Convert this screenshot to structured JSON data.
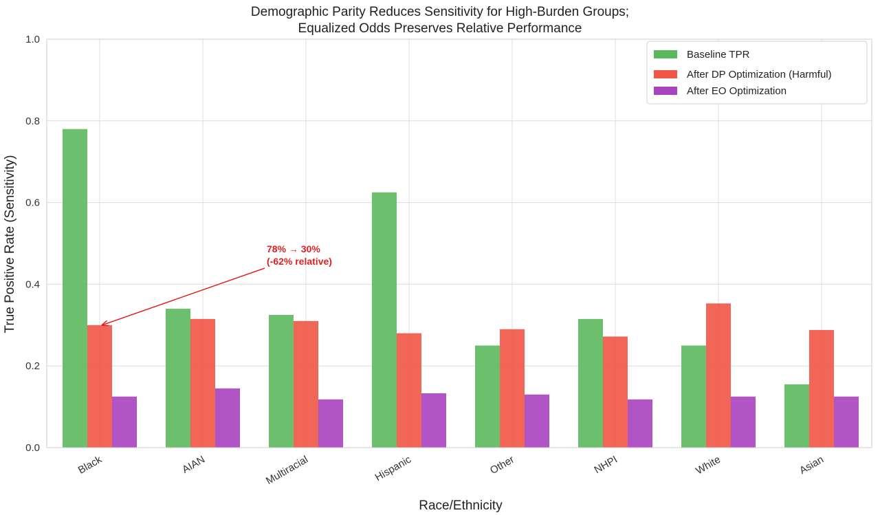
{
  "chart_data": {
    "type": "bar",
    "title": [
      "Demographic Parity Reduces Sensitivity for High-Burden Groups;",
      "Equalized Odds Preserves Relative Performance"
    ],
    "xlabel": "Race/Ethnicity",
    "ylabel": "True Positive Rate (Sensitivity)",
    "ylim": [
      0,
      1.0
    ],
    "yticks": [
      "0.0",
      "0.2",
      "0.4",
      "0.6",
      "0.8",
      "1.0"
    ],
    "grid": true,
    "legend_position": "top-right",
    "categories": [
      "Black",
      "AIAN",
      "Multiracial",
      "Hispanic",
      "Other",
      "NHPI",
      "White",
      "Asian"
    ],
    "series": [
      {
        "name": "Baseline TPR",
        "color": "#5cb85c",
        "values": [
          0.78,
          0.34,
          0.325,
          0.625,
          0.25,
          0.315,
          0.25,
          0.155
        ]
      },
      {
        "name": "After DP Optimization (Harmful)",
        "color": "#f05545",
        "values": [
          0.3,
          0.315,
          0.31,
          0.28,
          0.29,
          0.272,
          0.353,
          0.288
        ]
      },
      {
        "name": "After EO Optimization",
        "color": "#a843c0",
        "values": [
          0.125,
          0.145,
          0.118,
          0.133,
          0.13,
          0.118,
          0.125,
          0.125
        ]
      }
    ],
    "annotation": {
      "lines": [
        "78% → 30%",
        "(-62% relative)"
      ],
      "color": "#e02020",
      "target_category": "Black",
      "target_series": "After DP Optimization (Harmful)",
      "target_value": 0.3
    }
  }
}
